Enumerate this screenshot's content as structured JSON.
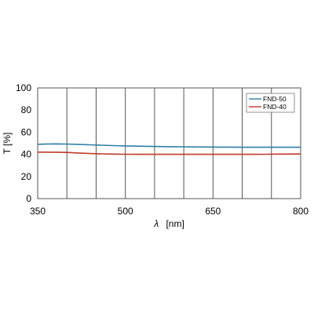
{
  "chart_data": {
    "type": "line",
    "xlabel_symbol": "λ",
    "xlabel_unit": "[nm]",
    "ylabel": "T [%]",
    "xlim": [
      350,
      800
    ],
    "ylim": [
      0,
      100
    ],
    "x_gridlines": [
      350,
      400,
      450,
      500,
      550,
      600,
      650,
      700,
      750,
      800
    ],
    "x_ticks": [
      {
        "value": 350,
        "label": "350"
      },
      {
        "value": 500,
        "label": "500"
      },
      {
        "value": 650,
        "label": "650"
      },
      {
        "value": 800,
        "label": "800"
      }
    ],
    "y_ticks": [
      {
        "value": 0,
        "label": "0"
      },
      {
        "value": 20,
        "label": "20"
      },
      {
        "value": 40,
        "label": "40"
      },
      {
        "value": 60,
        "label": "60"
      },
      {
        "value": 80,
        "label": "80"
      },
      {
        "value": 100,
        "label": "100"
      }
    ],
    "grid": "vertical",
    "legend_position": "top-right",
    "series": [
      {
        "name": "FND-50",
        "color": "#2e7fa8",
        "x": [
          350,
          360,
          380,
          400,
          420,
          440,
          460,
          480,
          500,
          520,
          540,
          560,
          580,
          600,
          620,
          640,
          660,
          680,
          700,
          720,
          740,
          760,
          780,
          800
        ],
        "y": [
          49.0,
          49.2,
          49.4,
          49.3,
          49.0,
          48.6,
          48.2,
          47.9,
          47.6,
          47.4,
          47.2,
          47.0,
          46.9,
          46.8,
          46.7,
          46.6,
          46.5,
          46.5,
          46.4,
          46.4,
          46.4,
          46.4,
          46.4,
          46.4
        ]
      },
      {
        "name": "FND-40",
        "color": "#c0392b",
        "x": [
          350,
          360,
          380,
          400,
          420,
          440,
          460,
          480,
          500,
          520,
          540,
          560,
          580,
          600,
          620,
          640,
          660,
          680,
          700,
          720,
          740,
          760,
          780,
          800
        ],
        "y": [
          42.0,
          42.0,
          41.9,
          41.7,
          41.2,
          40.7,
          40.4,
          40.2,
          40.1,
          40.0,
          40.0,
          40.0,
          40.0,
          40.0,
          40.0,
          40.0,
          40.0,
          40.0,
          40.0,
          40.0,
          40.1,
          40.2,
          40.2,
          40.3
        ]
      }
    ]
  }
}
